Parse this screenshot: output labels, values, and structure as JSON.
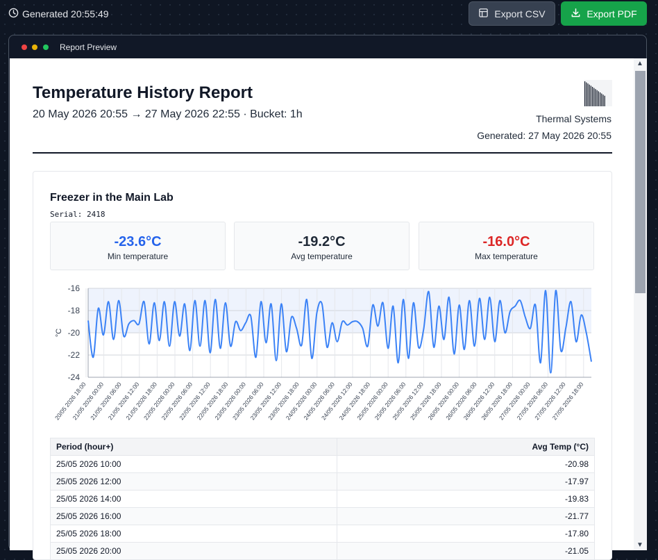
{
  "topbar": {
    "generated": "Generated 20:55:49",
    "export_csv": "Export CSV",
    "export_pdf": "Export PDF"
  },
  "window": {
    "title": "Report Preview"
  },
  "report": {
    "title": "Temperature History Report",
    "range": "20 May 2026 20:55 → 27 May 2026 22:55 · Bucket: 1h",
    "company": "Thermal Systems",
    "generated": "Generated: 27 May 2026 20:55"
  },
  "device": {
    "name": "Freezer in the Main Lab",
    "serial": "Serial: 2418"
  },
  "stats": {
    "min_value": "-23.6°C",
    "min_label": "Min temperature",
    "avg_value": "-19.2°C",
    "avg_label": "Avg temperature",
    "max_value": "-16.0°C",
    "max_label": "Max temperature"
  },
  "colors": {
    "line": "#3b82f6",
    "min": "#2563eb",
    "max": "#dc2626",
    "export_pdf": "#16a34a"
  },
  "chart_data": {
    "type": "line",
    "ylabel": "°C",
    "ylim": [
      -24,
      -16
    ],
    "yticks": [
      "-16",
      "-18",
      "-20",
      "-22",
      "-24"
    ],
    "grid": true,
    "xticks": [
      "20/05 2026 18:00",
      "21/05 2026 00:00",
      "21/05 2026 06:00",
      "21/05 2026 12:00",
      "21/05 2026 18:00",
      "22/05 2026 00:00",
      "22/05 2026 06:00",
      "22/05 2026 12:00",
      "22/05 2026 18:00",
      "23/05 2026 00:00",
      "23/05 2026 06:00",
      "23/05 2026 12:00",
      "23/05 2026 18:00",
      "24/05 2026 00:00",
      "24/05 2026 06:00",
      "24/05 2026 12:00",
      "24/05 2026 18:00",
      "25/05 2026 00:00",
      "25/05 2026 06:00",
      "25/05 2026 12:00",
      "25/05 2026 18:00",
      "26/05 2026 00:00",
      "26/05 2026 06:00",
      "26/05 2026 12:00",
      "26/05 2026 18:00",
      "27/05 2026 00:00",
      "27/05 2026 06:00",
      "27/05 2026 12:00",
      "27/05 2026 18:00"
    ],
    "series": [
      {
        "values": [
          -18.9,
          -22.2,
          -17.8,
          -20.2,
          -17.2,
          -20.6,
          -17.1,
          -20.3,
          -19.2,
          -18.9,
          -19.2,
          -17.2,
          -21.0,
          -17.3,
          -20.7,
          -17.2,
          -21.2,
          -17.2,
          -20.3,
          -17.4,
          -21.6,
          -17.1,
          -21.2,
          -17.1,
          -21.8,
          -17.0,
          -21.4,
          -17.3,
          -21.2,
          -19.0,
          -19.8,
          -19.1,
          -18.5,
          -22.2,
          -17.2,
          -20.9,
          -17.4,
          -22.5,
          -17.4,
          -21.7,
          -18.6,
          -19.6,
          -21.1,
          -17.0,
          -22.3,
          -18.2,
          -17.4,
          -21.3,
          -19.1,
          -20.8,
          -19.0,
          -19.3,
          -19.0,
          -19.0,
          -19.6,
          -21.2,
          -17.5,
          -19.4,
          -17.3,
          -21.4,
          -17.6,
          -22.7,
          -17.0,
          -22.3,
          -17.3,
          -21.3,
          -19.7,
          -16.3,
          -21.3,
          -17.6,
          -20.6,
          -16.8,
          -21.9,
          -17.5,
          -21.5,
          -17.1,
          -21.2,
          -16.9,
          -20.6,
          -16.8,
          -20.8,
          -17.1,
          -20.0,
          -18.1,
          -17.6,
          -17.1,
          -18.6,
          -19.6,
          -17.5,
          -22.7,
          -16.2,
          -23.6,
          -16.2,
          -21.6,
          -19.5,
          -17.2,
          -20.8,
          -18.4,
          -20.0,
          -22.6
        ]
      }
    ]
  },
  "table": {
    "headers": [
      "Period (hour+)",
      "Avg Temp (°C)"
    ],
    "rows": [
      [
        "25/05 2026 10:00",
        "-20.98"
      ],
      [
        "25/05 2026 12:00",
        "-17.97"
      ],
      [
        "25/05 2026 14:00",
        "-19.83"
      ],
      [
        "25/05 2026 16:00",
        "-21.77"
      ],
      [
        "25/05 2026 18:00",
        "-17.80"
      ],
      [
        "25/05 2026 20:00",
        "-21.05"
      ]
    ]
  }
}
